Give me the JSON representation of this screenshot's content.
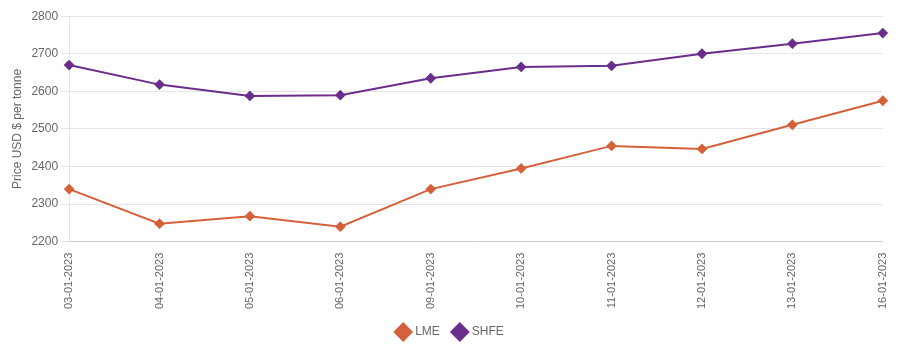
{
  "chart_data": {
    "type": "line",
    "categories": [
      "03-01-2023",
      "04-01-2023",
      "05-01-2023",
      "06-01-2023",
      "09-01-2023",
      "10-01-2023",
      "11-01-2023",
      "12-01-2023",
      "13-01-2023",
      "16-01-2023"
    ],
    "series": [
      {
        "name": "LME",
        "color": "#d4613a",
        "values": [
          2340,
          2248,
          2268,
          2240,
          2340,
          2395,
          2455,
          2447,
          2511,
          2575
        ]
      },
      {
        "name": "SHFE",
        "color": "#6b2d8b",
        "values": [
          2670,
          2618,
          2588,
          2590,
          2635,
          2665,
          2668,
          2700,
          2727,
          2755
        ]
      }
    ],
    "ylabel": "Price USD $ per tonne",
    "ylim": [
      2200,
      2800
    ],
    "yticks": [
      2200,
      2300,
      2400,
      2500,
      2600,
      2700,
      2800
    ],
    "grid": "y",
    "legend": "bottom",
    "marker": "diamond"
  }
}
